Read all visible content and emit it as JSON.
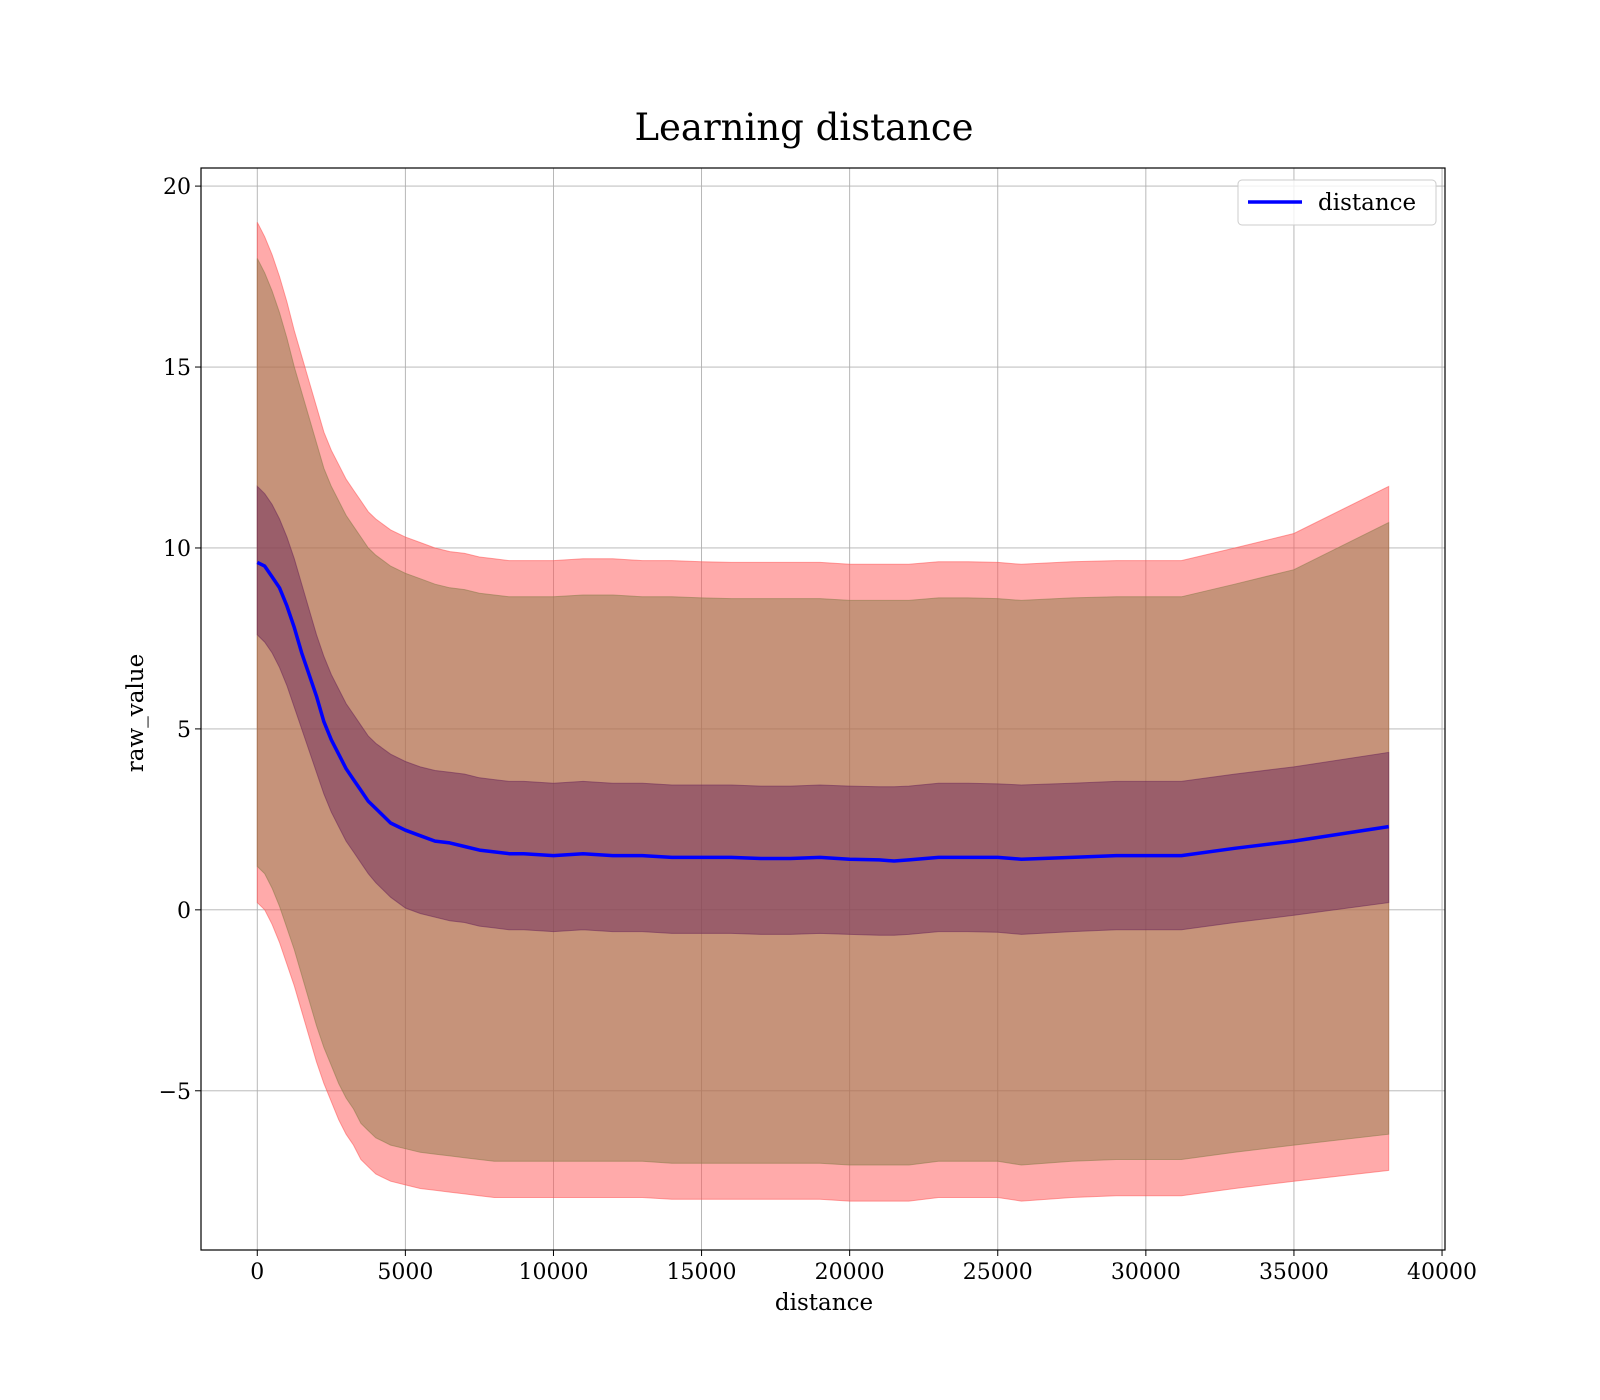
{
  "chart_data": {
    "type": "line",
    "title": "Learning distance",
    "xlabel": "distance",
    "ylabel": "raw_value",
    "xlim": [
      -1900,
      40100
    ],
    "ylim": [
      -9.4,
      20.5
    ],
    "xticks": [
      0,
      5000,
      10000,
      15000,
      20000,
      25000,
      30000,
      35000,
      40000
    ],
    "xtick_labels": [
      "0",
      "5000",
      "10000",
      "15000",
      "20000",
      "25000",
      "30000",
      "35000",
      "40000"
    ],
    "yticks": [
      -5,
      0,
      5,
      10,
      15,
      20
    ],
    "ytick_labels": [
      "−5",
      "0",
      "5",
      "10",
      "15",
      "20"
    ],
    "grid": true,
    "legend": {
      "placement": "top-right",
      "entries": [
        {
          "name": "distance",
          "color": "#0000ff"
        }
      ]
    },
    "x": [
      0,
      250,
      500,
      750,
      1000,
      1250,
      1500,
      1750,
      2000,
      2250,
      2500,
      2750,
      3000,
      3250,
      3500,
      3750,
      4000,
      4500,
      5000,
      5500,
      6000,
      6500,
      7000,
      7500,
      8000,
      8500,
      9000,
      10000,
      11000,
      12000,
      13000,
      14000,
      15000,
      16000,
      17000,
      18000,
      19000,
      20000,
      21000,
      21500,
      22000,
      23000,
      24000,
      25000,
      25800,
      27500,
      29000,
      31200,
      33000,
      35000,
      38200
    ],
    "series": [
      {
        "name": "distance",
        "color": "#0000ff",
        "values": [
          9.6,
          9.5,
          9.2,
          8.9,
          8.4,
          7.8,
          7.1,
          6.5,
          5.9,
          5.2,
          4.7,
          4.3,
          3.9,
          3.6,
          3.3,
          3.0,
          2.8,
          2.4,
          2.2,
          2.05,
          1.9,
          1.85,
          1.75,
          1.65,
          1.6,
          1.55,
          1.55,
          1.5,
          1.55,
          1.5,
          1.5,
          1.45,
          1.45,
          1.45,
          1.42,
          1.42,
          1.45,
          1.4,
          1.38,
          1.35,
          1.38,
          1.45,
          1.45,
          1.45,
          1.4,
          1.45,
          1.5,
          1.5,
          1.7,
          1.9,
          2.3
        ]
      }
    ],
    "bands": [
      {
        "name": "outer",
        "color": "#ff5555",
        "upper": [
          19.0,
          18.6,
          18.1,
          17.5,
          16.8,
          16.0,
          15.3,
          14.6,
          13.9,
          13.2,
          12.7,
          12.3,
          11.9,
          11.6,
          11.3,
          11.0,
          10.8,
          10.5,
          10.3,
          10.15,
          10.0,
          9.9,
          9.85,
          9.75,
          9.7,
          9.65,
          9.65,
          9.65,
          9.7,
          9.7,
          9.65,
          9.65,
          9.62,
          9.6,
          9.6,
          9.6,
          9.6,
          9.55,
          9.55,
          9.55,
          9.55,
          9.62,
          9.62,
          9.6,
          9.55,
          9.62,
          9.65,
          9.65,
          10.0,
          10.4,
          11.7
        ],
        "lower": [
          0.2,
          0.0,
          -0.4,
          -0.9,
          -1.5,
          -2.1,
          -2.8,
          -3.5,
          -4.2,
          -4.8,
          -5.3,
          -5.8,
          -6.2,
          -6.5,
          -6.9,
          -7.1,
          -7.3,
          -7.5,
          -7.6,
          -7.7,
          -7.75,
          -7.8,
          -7.85,
          -7.9,
          -7.95,
          -7.95,
          -7.95,
          -7.95,
          -7.95,
          -7.95,
          -7.95,
          -8.0,
          -8.0,
          -8.0,
          -8.0,
          -8.0,
          -8.0,
          -8.05,
          -8.05,
          -8.05,
          -8.05,
          -7.95,
          -7.95,
          -7.95,
          -8.05,
          -7.95,
          -7.9,
          -7.9,
          -7.7,
          -7.5,
          -7.2
        ]
      },
      {
        "name": "middle",
        "color": "#8d7c4a",
        "upper": [
          18.0,
          17.6,
          17.1,
          16.5,
          15.8,
          15.0,
          14.3,
          13.6,
          12.9,
          12.2,
          11.7,
          11.3,
          10.9,
          10.6,
          10.3,
          10.0,
          9.8,
          9.5,
          9.3,
          9.15,
          9.0,
          8.9,
          8.85,
          8.75,
          8.7,
          8.65,
          8.65,
          8.65,
          8.7,
          8.7,
          8.65,
          8.65,
          8.62,
          8.6,
          8.6,
          8.6,
          8.6,
          8.55,
          8.55,
          8.55,
          8.55,
          8.62,
          8.62,
          8.6,
          8.55,
          8.62,
          8.65,
          8.65,
          9.0,
          9.4,
          10.7
        ],
        "lower": [
          1.2,
          1.0,
          0.6,
          0.1,
          -0.5,
          -1.1,
          -1.8,
          -2.5,
          -3.2,
          -3.8,
          -4.3,
          -4.8,
          -5.2,
          -5.5,
          -5.9,
          -6.1,
          -6.3,
          -6.5,
          -6.6,
          -6.7,
          -6.75,
          -6.8,
          -6.85,
          -6.9,
          -6.95,
          -6.95,
          -6.95,
          -6.95,
          -6.95,
          -6.95,
          -6.95,
          -7.0,
          -7.0,
          -7.0,
          -7.0,
          -7.0,
          -7.0,
          -7.05,
          -7.05,
          -7.05,
          -7.05,
          -6.95,
          -6.95,
          -6.95,
          -7.05,
          -6.95,
          -6.9,
          -6.9,
          -6.7,
          -6.5,
          -6.2
        ]
      },
      {
        "name": "inner",
        "color": "#6d2a5a",
        "upper": [
          11.7,
          11.5,
          11.2,
          10.8,
          10.3,
          9.7,
          9.0,
          8.3,
          7.6,
          7.0,
          6.5,
          6.1,
          5.7,
          5.4,
          5.1,
          4.8,
          4.6,
          4.3,
          4.1,
          3.95,
          3.85,
          3.8,
          3.75,
          3.65,
          3.6,
          3.55,
          3.55,
          3.5,
          3.55,
          3.5,
          3.5,
          3.45,
          3.45,
          3.45,
          3.42,
          3.42,
          3.45,
          3.42,
          3.4,
          3.4,
          3.42,
          3.5,
          3.5,
          3.48,
          3.45,
          3.5,
          3.55,
          3.55,
          3.75,
          3.95,
          4.35
        ],
        "lower": [
          7.6,
          7.4,
          7.1,
          6.7,
          6.2,
          5.6,
          5.0,
          4.4,
          3.8,
          3.2,
          2.7,
          2.3,
          1.9,
          1.6,
          1.3,
          1.0,
          0.75,
          0.35,
          0.05,
          -0.1,
          -0.2,
          -0.3,
          -0.35,
          -0.45,
          -0.5,
          -0.55,
          -0.55,
          -0.6,
          -0.55,
          -0.6,
          -0.6,
          -0.65,
          -0.65,
          -0.65,
          -0.68,
          -0.68,
          -0.65,
          -0.68,
          -0.7,
          -0.7,
          -0.68,
          -0.6,
          -0.6,
          -0.62,
          -0.68,
          -0.6,
          -0.55,
          -0.55,
          -0.35,
          -0.15,
          0.2
        ]
      }
    ]
  }
}
